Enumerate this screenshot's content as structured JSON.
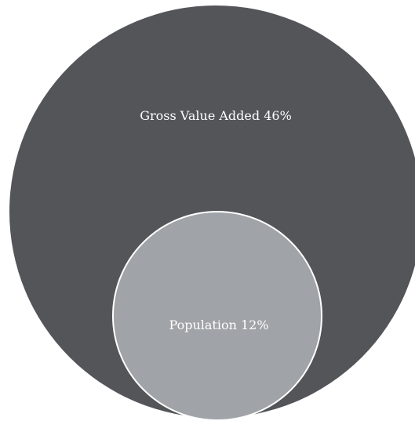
{
  "diagram": {
    "outer": {
      "label": "Gross Value Added 46%",
      "color": "#545558"
    },
    "inner": {
      "label": "Population 12%",
      "color": "#a0a3a7",
      "outline": "#ffffff"
    }
  }
}
